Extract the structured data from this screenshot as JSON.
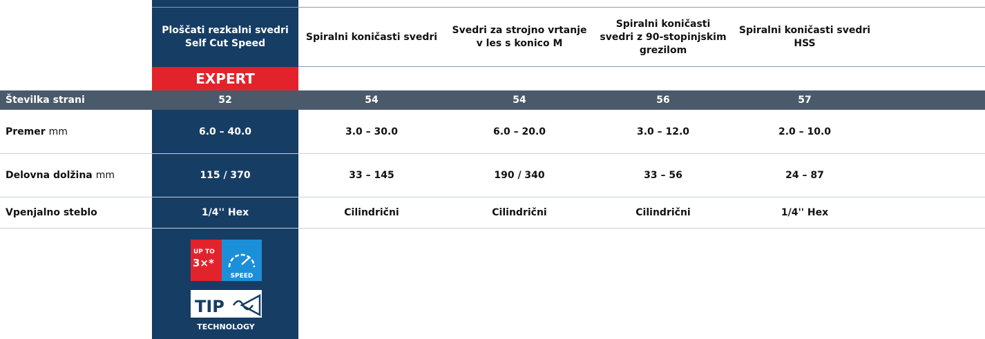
{
  "header": {
    "columns": [
      "Ploščati rezkalni svedri Self Cut Speed",
      "Spiralni koničasti svedri",
      "Svedri za strojno vrtanje v les s konico M",
      "Spiralni koničasti svedri z 90-stopinjskim grezilom",
      "Spiralni koničasti svedri HSS"
    ],
    "badge": "EXPERT"
  },
  "table": {
    "rows": [
      {
        "label": "Številka strani",
        "values": [
          "52",
          "54",
          "54",
          "56",
          "57"
        ]
      },
      {
        "label": "Premer",
        "unit": "mm",
        "values": [
          "6.0 – 40.0",
          "3.0 – 30.0",
          "6.0 – 20.0",
          "3.0 – 12.0",
          "2.0 – 10.0"
        ]
      },
      {
        "label": "Delovna dolžina",
        "unit": "mm",
        "values": [
          "115 / 370",
          "33 – 145",
          "190 / 340",
          "33 – 56",
          "24 – 87"
        ]
      },
      {
        "label": "Vpenjalno steblo",
        "values": [
          "1/4'' Hex",
          "Cilindrični",
          "Cilindrični",
          "Cilindrični",
          "1/4'' Hex"
        ]
      }
    ]
  },
  "icons": {
    "speed": {
      "top": "UP TO",
      "factor": "3×*",
      "label": "SPEED"
    },
    "tip": {
      "title": "TIP",
      "subtitle": "TECHNOLOGY"
    }
  }
}
